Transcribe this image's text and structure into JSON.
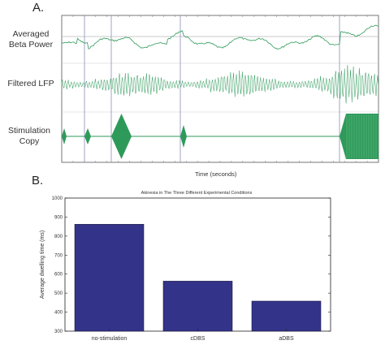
{
  "panel_a": {
    "letter": "A.",
    "row_labels": {
      "beta": [
        "Averaged",
        "Beta Power"
      ],
      "lfp": "Filtered LFP",
      "stim": [
        "Stimulation",
        "Copy"
      ]
    },
    "xlabel": "Time (seconds)"
  },
  "panel_b": {
    "letter": "B.",
    "chart_data": {
      "type": "bar",
      "title": "Akinesia in The Three Different Experimental Conditions",
      "categories": [
        "no-stimulation",
        "cDBS",
        "aDBS"
      ],
      "values": [
        862,
        563,
        458
      ],
      "ylabel": "Average dwelling time (ms)",
      "xlabel": "",
      "ylim": [
        300,
        1000
      ],
      "yticks": [
        300,
        400,
        500,
        600,
        700,
        800,
        900,
        1000
      ],
      "bar_color": "#33338a",
      "grid": false
    }
  },
  "colors": {
    "trace": "#2e9a5a",
    "stim": "#2e9a5a",
    "marker": "#8a8fb5",
    "threshold": "#b8b8b8"
  }
}
